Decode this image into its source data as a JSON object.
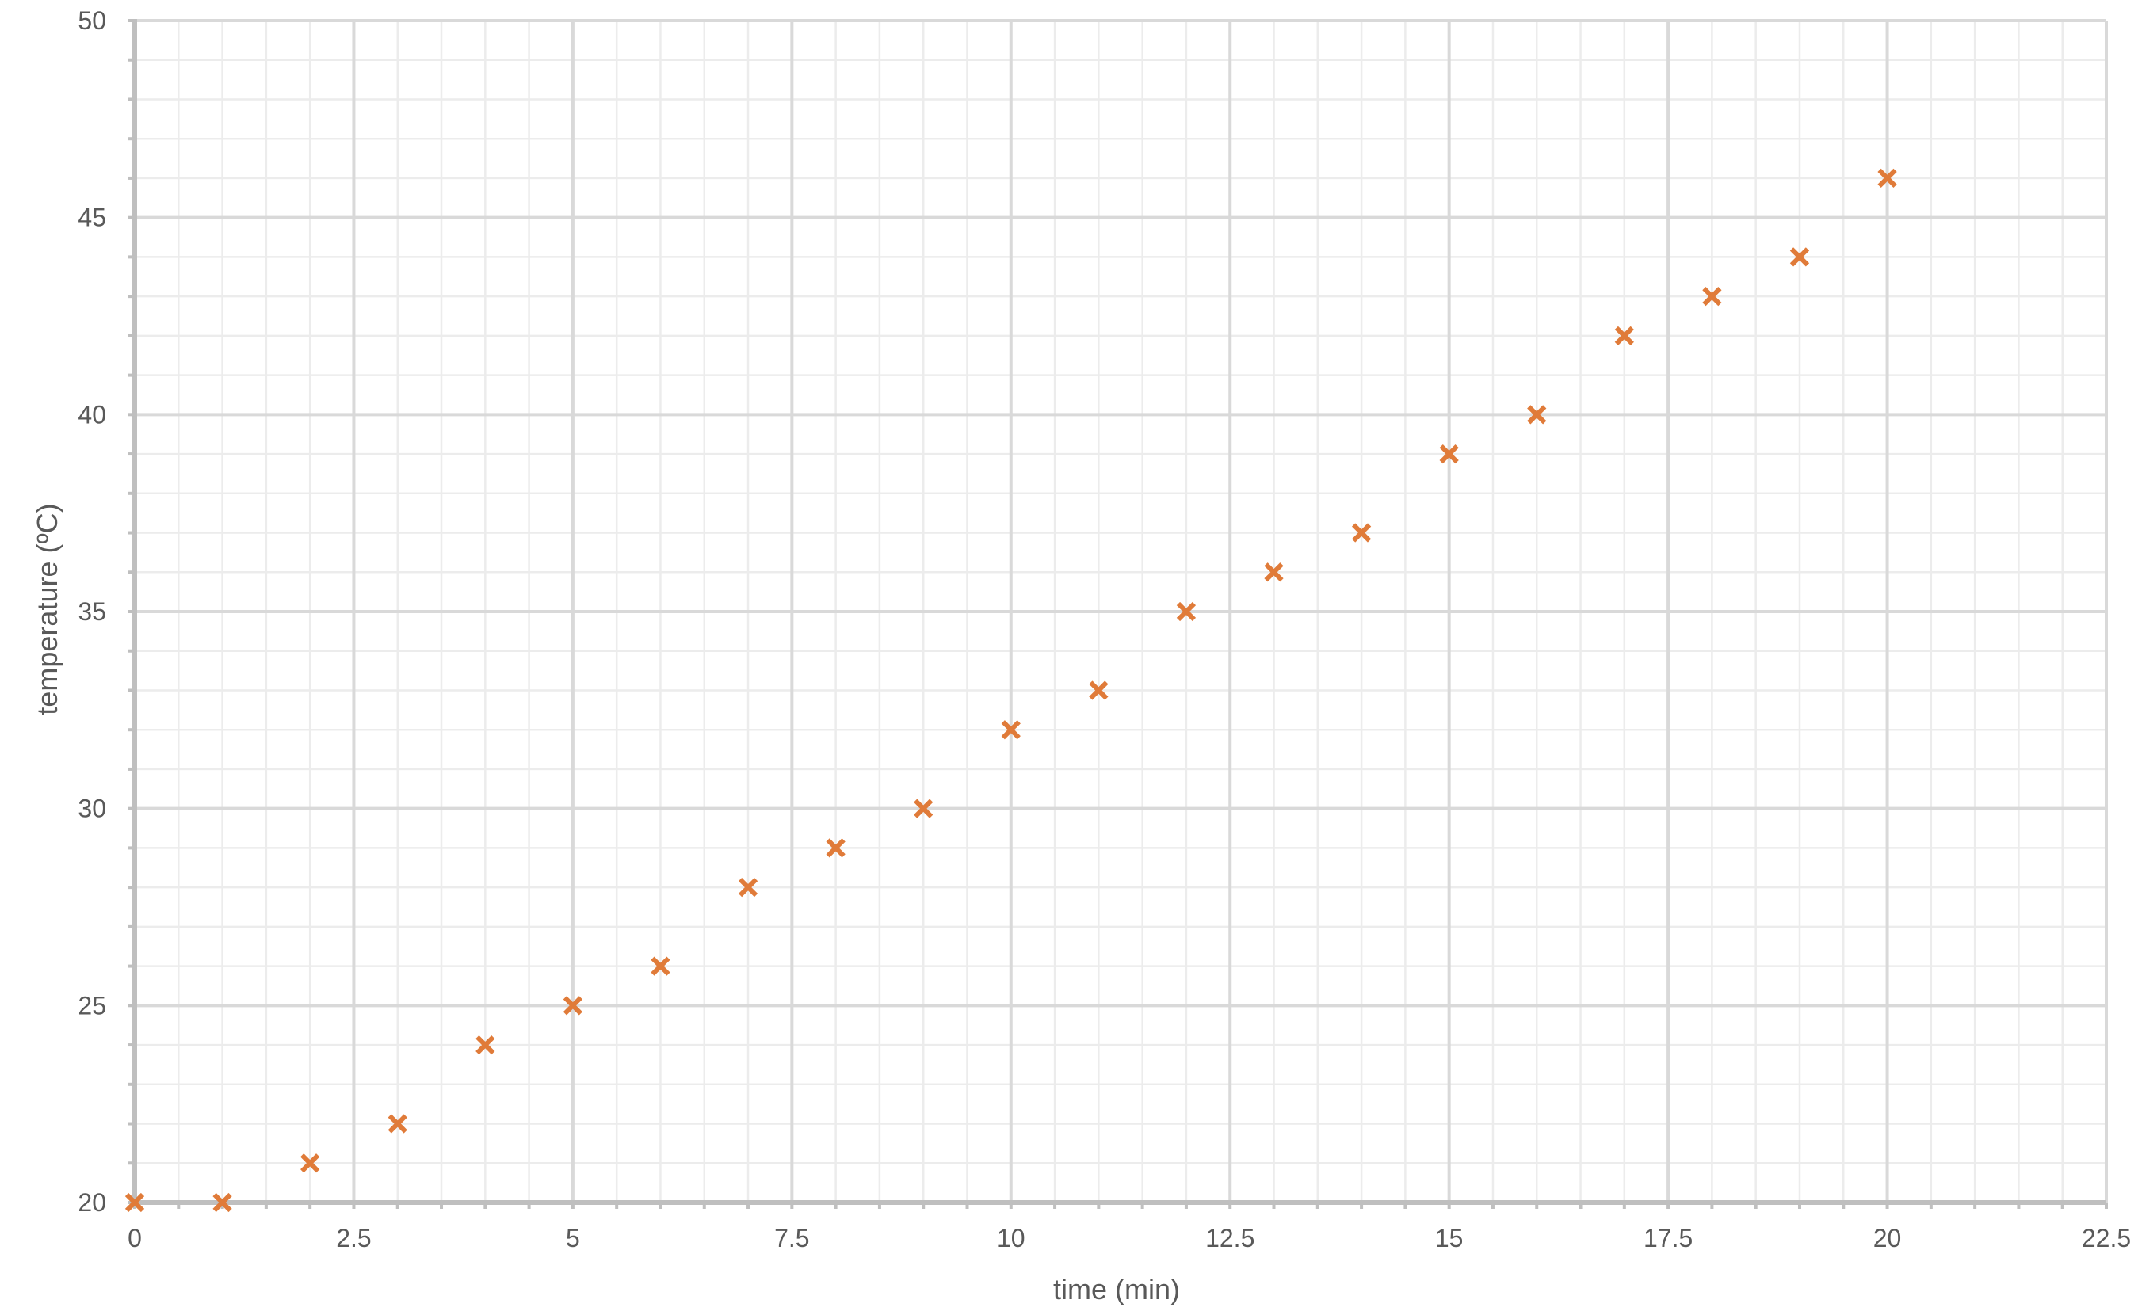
{
  "chart_data": {
    "type": "scatter",
    "title": "",
    "xlabel": "time (min)",
    "ylabel": "temperature (ºC)",
    "xlim": [
      0,
      22.5
    ],
    "ylim": [
      20,
      50
    ],
    "x_major_step": 2.5,
    "x_minor_step": 0.5,
    "y_major_step": 5,
    "y_minor_step": 1,
    "x_tick_labels": [
      "0",
      "2.5",
      "5",
      "7.5",
      "10",
      "12.5",
      "15",
      "17.5",
      "20",
      "22.5"
    ],
    "y_tick_labels": [
      "20",
      "25",
      "30",
      "35",
      "40",
      "45",
      "50"
    ],
    "grid": true,
    "legend": "none",
    "marker": "x",
    "marker_color": "#e07b39",
    "series": [
      {
        "x": [
          0,
          1,
          2,
          3,
          4,
          5,
          6,
          7,
          8,
          9,
          10,
          11,
          12,
          13,
          14,
          15,
          16,
          17,
          18,
          19,
          20
        ],
        "y": [
          20,
          20,
          21,
          22,
          24,
          25,
          26,
          28,
          29,
          30,
          32,
          33,
          35,
          36,
          37,
          39,
          40,
          42,
          43,
          44,
          46
        ]
      }
    ]
  }
}
